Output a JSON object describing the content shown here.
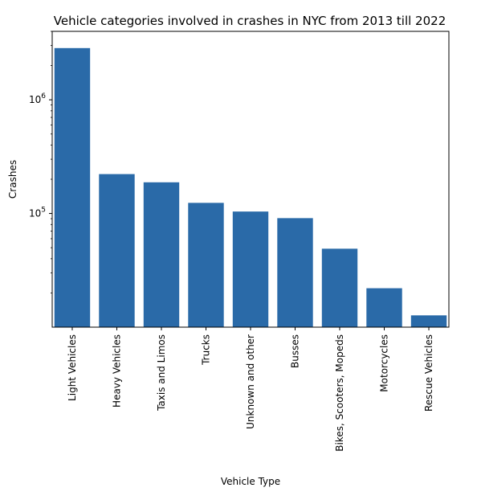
{
  "chart_data": {
    "type": "bar",
    "title": "Vehicle categories involved in crashes in NYC from 2013 till 2022",
    "xlabel": "Vehicle Type",
    "ylabel": "Crashes",
    "yscale": "log",
    "ylim": [
      10000,
      4000000
    ],
    "grid": false,
    "bar_color": "#2a6aa8",
    "categories": [
      "Light Vehicles",
      "Heavy Vehicles",
      "Taxis and Limos",
      "Trucks",
      "Unknown and other",
      "Busses",
      "Bikes, Scooters, Mopeds",
      "Motorcycles",
      "Rescue Vehicles"
    ],
    "values": [
      2850000,
      222000,
      188000,
      124000,
      104000,
      91000,
      49000,
      22000,
      12700
    ],
    "yticks": [
      {
        "value": 100000,
        "base": "10",
        "exp": "5"
      },
      {
        "value": 1000000,
        "base": "10",
        "exp": "6"
      }
    ]
  }
}
